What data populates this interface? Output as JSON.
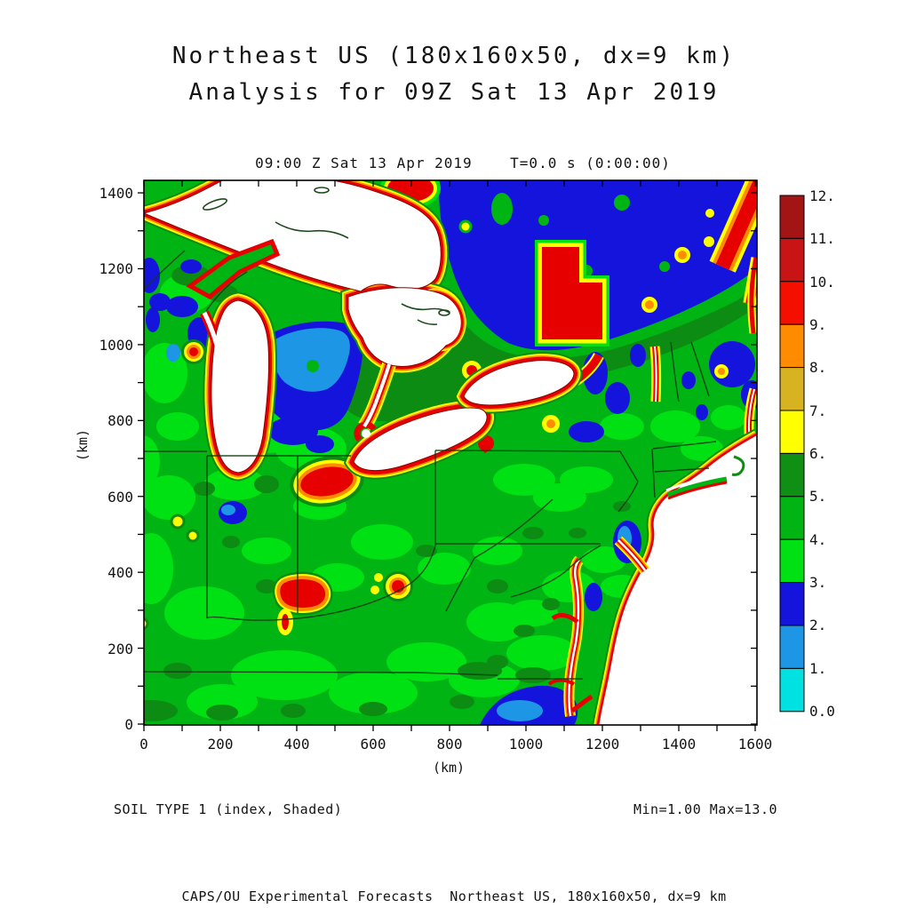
{
  "header": {
    "title_line1": "Northeast US (180x160x50, dx=9 km)",
    "title_line2": "Analysis for 09Z Sat 13 Apr 2019"
  },
  "plot": {
    "subtitle": "09:00 Z Sat 13 Apr 2019    T=0.0 s (0:00:00)",
    "field_caption": "SOIL TYPE 1 (index, Shaded)",
    "minmax_caption": "Min=1.00 Max=13.0",
    "footer": "CAPS/OU Experimental Forecasts  Northeast US, 180x160x50, dx=9 km"
  },
  "axes": {
    "x_label": "(km)",
    "y_label": "(km)",
    "x_ticks": [
      "0",
      "200",
      "400",
      "600",
      "800",
      "1000",
      "1200",
      "1400",
      "1600"
    ],
    "y_ticks": [
      "1400",
      "1200",
      "1000",
      "800",
      "600",
      "400",
      "200",
      "0"
    ]
  },
  "colorbar": {
    "labels": [
      "12.",
      "11.",
      "10.",
      "9.",
      "8.",
      "7.",
      "6.",
      "5.",
      "4.",
      "3.",
      "2.",
      "1.",
      "0.0"
    ],
    "colors": [
      "#a31414",
      "#c81414",
      "#f50f00",
      "#ff8c00",
      "#d7b221",
      "#ffff00",
      "#0f8f14",
      "#00b414",
      "#00e114",
      "#1414dc",
      "#1e96e6",
      "#00e1e1"
    ]
  },
  "chart_data": {
    "type": "heatmap",
    "title": "Northeast US (180x160x50, dx=9 km)",
    "subtitle": "Analysis for 09Z Sat 13 Apr 2019",
    "time_caption": "09:00 Z Sat 13 Apr 2019  T=0.0 s (0:00:00)",
    "field": "SOIL TYPE 1 (index, Shaded)",
    "min": 1.0,
    "max": 13.0,
    "xlabel": "(km)",
    "ylabel": "(km)",
    "xlim": [
      0,
      1600
    ],
    "ylim": [
      0,
      1430
    ],
    "x_tick_values": [
      0,
      200,
      400,
      600,
      800,
      1000,
      1200,
      1400,
      1600
    ],
    "y_tick_values": [
      0,
      200,
      400,
      600,
      800,
      1000,
      1200,
      1400
    ],
    "colorbar_levels": [
      0,
      1,
      2,
      3,
      4,
      5,
      6,
      7,
      8,
      9,
      10,
      11,
      12
    ],
    "colorbar_colors_low_to_high": [
      "#00e1e1",
      "#1e96e6",
      "#1414dc",
      "#00e114",
      "#00b414",
      "#0f8f14",
      "#ffff00",
      "#d7b221",
      "#ff8c00",
      "#f50f00",
      "#c81414",
      "#a31414"
    ],
    "grid": "off",
    "legend_position": "right colorbar",
    "regions": [
      {
        "name": "Great Lakes water bodies (Superior, Michigan, Huron, Erie, Ontario)",
        "value": "no-data white, rimmed by index 9-12 red band with orange/yellow fringe"
      },
      {
        "name": "Atlantic Ocean / coastline (lower right)",
        "value": "white with red index 9-12 coastal rim"
      },
      {
        "name": "Canada north of lakes",
        "value": "index 2-3 blue mass with 5-6 dark green band to its south"
      },
      {
        "name": "large red blob north of Lake Ontario (~x 1050-1200 km, y 1050-1250 km)",
        "value": "index 9-11"
      },
      {
        "name": "lower Michigan interior",
        "value": "index 1-3 blue with 0-1 cyan core"
      },
      {
        "name": "dominant land surface",
        "value": "index 4-5 green with scattered 3-4 bright green and 5-6 dark green patches"
      },
      {
        "name": "scattered small red/orange/yellow spots (S Indiana, N Kentucky, Toledo area, Wisconsin)",
        "value": "index 6-10"
      },
      {
        "name": "New Jersey coast, Carolina coast, Adirondacks, N New England",
        "value": "index 0-3 blue/cyan patches"
      }
    ]
  }
}
